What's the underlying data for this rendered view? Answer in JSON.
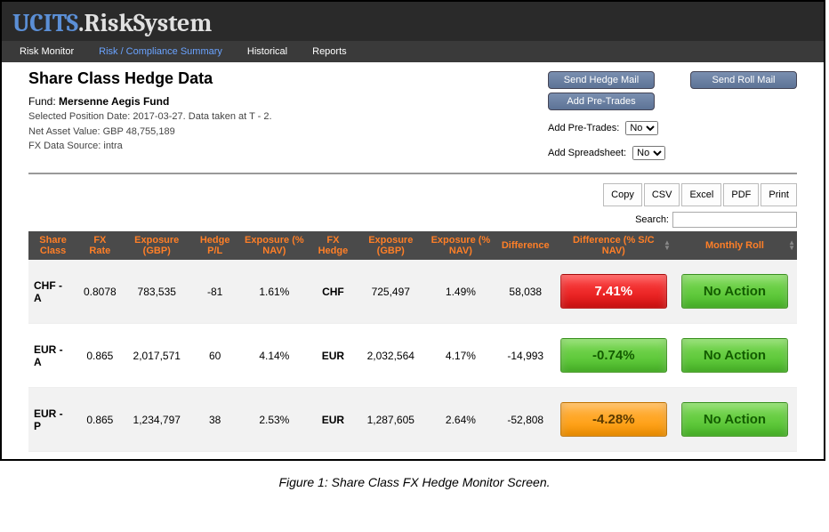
{
  "brand": {
    "u": "UCITS",
    "dot": ".",
    "rest": "RiskSystem"
  },
  "nav": {
    "risk_monitor": "Risk Monitor",
    "risk_compliance": "Risk / Compliance Summary",
    "historical": "Historical",
    "reports": "Reports"
  },
  "page": {
    "title": "Share Class Hedge Data",
    "fund_label": "Fund:",
    "fund_name": "Mersenne Aegis Fund",
    "position_line": "Selected Position Date: 2017-03-27. Data taken at T - 2.",
    "nav_line": "Net Asset Value: GBP 48,755,189",
    "fx_line": "FX Data Source: intra"
  },
  "actions": {
    "send_hedge": "Send Hedge Mail",
    "send_roll": "Send Roll Mail",
    "add_pretrades_btn": "Add Pre-Trades",
    "add_pretrades_label": "Add Pre-Trades:",
    "add_spreadsheet_label": "Add Spreadsheet:",
    "opt_no": "No"
  },
  "export": {
    "copy": "Copy",
    "csv": "CSV",
    "excel": "Excel",
    "pdf": "PDF",
    "print": "Print"
  },
  "search": {
    "label": "Search:"
  },
  "columns": {
    "share_class": "Share Class",
    "fx_rate": "FX Rate",
    "exposure_gbp": "Exposure (GBP)",
    "hedge_pl": "Hedge P/L",
    "exposure_pct_nav": "Exposure (% NAV)",
    "fx_hedge": "FX Hedge",
    "exposure_gbp2": "Exposure (GBP)",
    "exposure_pct_nav2": "Exposure (% NAV)",
    "difference": "Difference",
    "diff_pct_scnav": "Difference (% S/C NAV)",
    "monthly_roll": "Monthly Roll"
  },
  "rows": [
    {
      "share_class": "CHF - A",
      "fx_rate": "0.8078",
      "exp_gbp": "783,535",
      "hedge_pl": "-81",
      "exp_pct": "1.61%",
      "fx_hedge": "CHF",
      "exp_gbp2": "725,497",
      "exp_pct2": "1.49%",
      "diff": "58,038",
      "diff_pct": "7.41%",
      "diff_color": "red",
      "roll": "No Action",
      "roll_color": "green"
    },
    {
      "share_class": "EUR - A",
      "fx_rate": "0.865",
      "exp_gbp": "2,017,571",
      "hedge_pl": "60",
      "exp_pct": "4.14%",
      "fx_hedge": "EUR",
      "exp_gbp2": "2,032,564",
      "exp_pct2": "4.17%",
      "diff": "-14,993",
      "diff_pct": "-0.74%",
      "diff_color": "green",
      "roll": "No Action",
      "roll_color": "green"
    },
    {
      "share_class": "EUR - P",
      "fx_rate": "0.865",
      "exp_gbp": "1,234,797",
      "hedge_pl": "38",
      "exp_pct": "2.53%",
      "fx_hedge": "EUR",
      "exp_gbp2": "1,287,605",
      "exp_pct2": "2.64%",
      "diff": "-52,808",
      "diff_pct": "-4.28%",
      "diff_color": "orange",
      "roll": "No Action",
      "roll_color": "green"
    }
  ],
  "caption": "Figure 1: Share Class FX Hedge Monitor Screen."
}
